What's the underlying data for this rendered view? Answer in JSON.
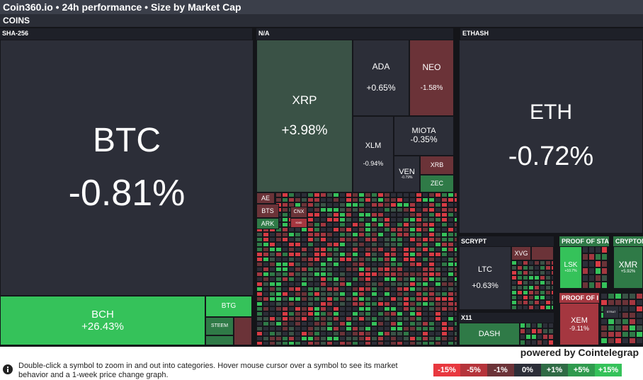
{
  "header": {
    "title": "Coin360.io • 24h performance • Size by Market Cap",
    "category": "COINS"
  },
  "groups": {
    "sha256": "SHA-256",
    "na": "N/A",
    "ethash": "ETHASH",
    "scrypt": "SCRYPT",
    "pos": "PROOF OF STA",
    "cryptonight": "CRYPTON",
    "poi": "PROOF OF I",
    "x11": "X11"
  },
  "coins": {
    "btc": {
      "symbol": "BTC",
      "change": "-0.81%"
    },
    "bch": {
      "symbol": "BCH",
      "change": "+26.43%"
    },
    "btg": {
      "symbol": "BTG"
    },
    "steem": {
      "symbol": "STEEM"
    },
    "xrp": {
      "symbol": "XRP",
      "change": "+3.98%"
    },
    "ada": {
      "symbol": "ADA",
      "change": "+0.65%"
    },
    "neo": {
      "symbol": "NEO",
      "change": "-1.58%"
    },
    "xlm": {
      "symbol": "XLM",
      "change": "-0.94%"
    },
    "miota": {
      "symbol": "MIOTA",
      "change": "-0.35%"
    },
    "ven": {
      "symbol": "VEN",
      "change": "-0.79%"
    },
    "xrb": {
      "symbol": "XRB"
    },
    "zec": {
      "symbol": "ZEC"
    },
    "ae": {
      "symbol": "AE"
    },
    "bts": {
      "symbol": "BTS"
    },
    "ark": {
      "symbol": "ARK"
    },
    "cnx": {
      "symbol": "CNX"
    },
    "kmd": {
      "symbol": "KMD"
    },
    "eth": {
      "symbol": "ETH",
      "change": "-0.72%"
    },
    "ltc": {
      "symbol": "LTC",
      "change": "+0.63%"
    },
    "xvg": {
      "symbol": "XVG"
    },
    "lsk": {
      "symbol": "LSK",
      "change": "+10.7%"
    },
    "xmr": {
      "symbol": "XMR",
      "change": "+5.92%"
    },
    "xem": {
      "symbol": "XEM",
      "change": "-9.11%"
    },
    "dash": {
      "symbol": "DASH"
    },
    "strat": {
      "symbol": "STRAT"
    }
  },
  "footer": {
    "powered": "powered by Cointelegrap",
    "help": "Double-click a symbol to zoom in and out into categories. Hover mouse cursor over a symbol to see its market behavior and a 1-week price change graph.",
    "legend": [
      "-15%",
      "-5%",
      "-1%",
      "0%",
      "+1%",
      "+5%",
      "+15%"
    ],
    "legend_colors": [
      "#e8383f",
      "#b5343b",
      "#6c3338",
      "#2c2e38",
      "#2f6b45",
      "#2f9a4e",
      "#35c25a"
    ]
  }
}
